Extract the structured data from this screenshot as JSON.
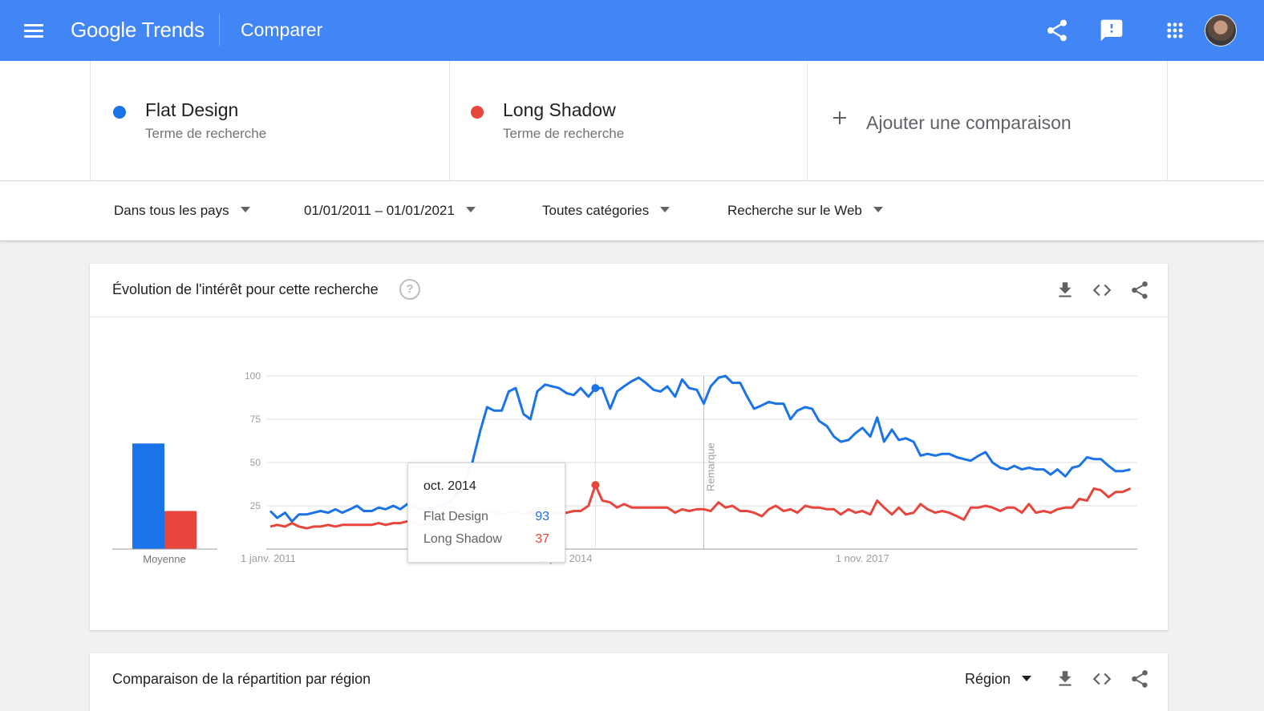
{
  "app": {
    "logo_text": "Google Trends",
    "page_title": "Comparer"
  },
  "terms": [
    {
      "name": "Flat Design",
      "type": "Terme de recherche",
      "color": "#1a73e8"
    },
    {
      "name": "Long Shadow",
      "type": "Terme de recherche",
      "color": "#e8453c"
    }
  ],
  "add_comparison": "Ajouter une comparaison",
  "filters": {
    "location": "Dans tous les pays",
    "date_range": "01/01/2011 – 01/01/2021",
    "category": "Toutes catégories",
    "search_type": "Recherche sur le Web"
  },
  "interest_card": {
    "title": "Évolution de l'intérêt pour cette recherche",
    "help_symbol": "?"
  },
  "region_card": {
    "title": "Comparaison de la répartition par région",
    "dropdown": "Région"
  },
  "tooltip": {
    "date": "oct. 2014",
    "rows": [
      {
        "label": "Flat Design",
        "value": "93",
        "color": "#1a73e8"
      },
      {
        "label": "Long Shadow",
        "value": "37",
        "color": "#e8453c"
      }
    ]
  },
  "chart_data": {
    "type": "line",
    "y_ticks": [
      "100",
      "75",
      "50",
      "25"
    ],
    "ylim": [
      0,
      100
    ],
    "x_ticks": [
      "1 janv. 2011",
      "1 juin 2014",
      "1 nov. 2017"
    ],
    "note_label": "Remarque",
    "average_label": "Moyenne",
    "averages": [
      {
        "name": "Flat Design",
        "value": 61,
        "color": "#1a73e8"
      },
      {
        "name": "Long Shadow",
        "value": 22,
        "color": "#e8453c"
      }
    ],
    "series": [
      {
        "name": "Flat Design",
        "color": "#1a73e8",
        "points": [
          [
            2011.0,
            22
          ],
          [
            2011.08,
            18
          ],
          [
            2011.17,
            21
          ],
          [
            2011.25,
            16
          ],
          [
            2011.33,
            20
          ],
          [
            2011.42,
            20
          ],
          [
            2011.5,
            21
          ],
          [
            2011.58,
            22
          ],
          [
            2011.67,
            21
          ],
          [
            2011.75,
            23
          ],
          [
            2011.83,
            21
          ],
          [
            2011.92,
            23
          ],
          [
            2012.0,
            25
          ],
          [
            2012.08,
            22
          ],
          [
            2012.17,
            22
          ],
          [
            2012.25,
            24
          ],
          [
            2012.33,
            23
          ],
          [
            2012.42,
            25
          ],
          [
            2012.5,
            23
          ],
          [
            2012.58,
            26
          ],
          [
            2012.67,
            24
          ],
          [
            2012.75,
            23
          ],
          [
            2012.83,
            22
          ],
          [
            2012.92,
            25
          ],
          [
            2013.0,
            26
          ],
          [
            2013.08,
            28
          ],
          [
            2013.17,
            33
          ],
          [
            2013.25,
            40
          ],
          [
            2013.33,
            50
          ],
          [
            2013.42,
            68
          ],
          [
            2013.5,
            82
          ],
          [
            2013.58,
            80
          ],
          [
            2013.67,
            80
          ],
          [
            2013.75,
            91
          ],
          [
            2013.83,
            93
          ],
          [
            2013.92,
            78
          ],
          [
            2014.0,
            75
          ],
          [
            2014.08,
            91
          ],
          [
            2014.17,
            95
          ],
          [
            2014.25,
            94
          ],
          [
            2014.33,
            93
          ],
          [
            2014.42,
            90
          ],
          [
            2014.5,
            89
          ],
          [
            2014.58,
            93
          ],
          [
            2014.67,
            88
          ],
          [
            2014.75,
            93
          ],
          [
            2014.83,
            93
          ],
          [
            2014.92,
            81
          ],
          [
            2015.0,
            91
          ],
          [
            2015.08,
            94
          ],
          [
            2015.17,
            97
          ],
          [
            2015.25,
            99
          ],
          [
            2015.33,
            96
          ],
          [
            2015.42,
            92
          ],
          [
            2015.5,
            91
          ],
          [
            2015.58,
            94
          ],
          [
            2015.67,
            88
          ],
          [
            2015.75,
            98
          ],
          [
            2015.83,
            93
          ],
          [
            2015.92,
            92
          ],
          [
            2016.0,
            84
          ],
          [
            2016.08,
            94
          ],
          [
            2016.17,
            99
          ],
          [
            2016.25,
            100
          ],
          [
            2016.33,
            96
          ],
          [
            2016.42,
            96
          ],
          [
            2016.5,
            88
          ],
          [
            2016.58,
            81
          ],
          [
            2016.67,
            83
          ],
          [
            2016.75,
            85
          ],
          [
            2016.83,
            84
          ],
          [
            2016.92,
            84
          ],
          [
            2017.0,
            75
          ],
          [
            2017.08,
            80
          ],
          [
            2017.17,
            82
          ],
          [
            2017.25,
            81
          ],
          [
            2017.33,
            74
          ],
          [
            2017.42,
            71
          ],
          [
            2017.5,
            65
          ],
          [
            2017.58,
            62
          ],
          [
            2017.67,
            63
          ],
          [
            2017.75,
            67
          ],
          [
            2017.83,
            70
          ],
          [
            2017.92,
            65
          ],
          [
            2018.0,
            76
          ],
          [
            2018.08,
            62
          ],
          [
            2018.17,
            69
          ],
          [
            2018.25,
            63
          ],
          [
            2018.33,
            64
          ],
          [
            2018.42,
            62
          ],
          [
            2018.5,
            54
          ],
          [
            2018.58,
            55
          ],
          [
            2018.67,
            54
          ],
          [
            2018.75,
            55
          ],
          [
            2018.83,
            55
          ],
          [
            2018.92,
            53
          ],
          [
            2019.0,
            52
          ],
          [
            2019.08,
            51
          ],
          [
            2019.17,
            54
          ],
          [
            2019.25,
            56
          ],
          [
            2019.33,
            50
          ],
          [
            2019.42,
            47
          ],
          [
            2019.5,
            46
          ],
          [
            2019.58,
            48
          ],
          [
            2019.67,
            46
          ],
          [
            2019.75,
            47
          ],
          [
            2019.83,
            46
          ],
          [
            2019.92,
            46
          ],
          [
            2020.0,
            43
          ],
          [
            2020.08,
            46
          ],
          [
            2020.17,
            42
          ],
          [
            2020.25,
            47
          ],
          [
            2020.33,
            48
          ],
          [
            2020.42,
            53
          ],
          [
            2020.5,
            52
          ],
          [
            2020.58,
            52
          ],
          [
            2020.67,
            48
          ],
          [
            2020.75,
            45
          ],
          [
            2020.83,
            45
          ],
          [
            2020.92,
            46
          ]
        ]
      },
      {
        "name": "Long Shadow",
        "color": "#e8453c",
        "points": [
          [
            2011.0,
            13
          ],
          [
            2011.08,
            14
          ],
          [
            2011.17,
            13
          ],
          [
            2011.25,
            15
          ],
          [
            2011.33,
            13
          ],
          [
            2011.42,
            12
          ],
          [
            2011.5,
            13
          ],
          [
            2011.58,
            13
          ],
          [
            2011.67,
            14
          ],
          [
            2011.75,
            13
          ],
          [
            2011.83,
            14
          ],
          [
            2011.92,
            14
          ],
          [
            2012.0,
            14
          ],
          [
            2012.08,
            14
          ],
          [
            2012.17,
            14
          ],
          [
            2012.25,
            15
          ],
          [
            2012.33,
            14
          ],
          [
            2012.42,
            15
          ],
          [
            2012.5,
            15
          ],
          [
            2012.58,
            16
          ],
          [
            2012.67,
            15
          ],
          [
            2012.75,
            14
          ],
          [
            2012.83,
            15
          ],
          [
            2012.92,
            14
          ],
          [
            2013.0,
            16
          ],
          [
            2013.08,
            16
          ],
          [
            2013.17,
            17
          ],
          [
            2013.25,
            19
          ],
          [
            2013.33,
            20
          ],
          [
            2013.42,
            20
          ],
          [
            2013.5,
            21
          ],
          [
            2013.58,
            22
          ],
          [
            2013.67,
            20
          ],
          [
            2013.75,
            21
          ],
          [
            2013.83,
            22
          ],
          [
            2013.92,
            20
          ],
          [
            2014.0,
            21
          ],
          [
            2014.08,
            21
          ],
          [
            2014.17,
            21
          ],
          [
            2014.25,
            21
          ],
          [
            2014.33,
            21
          ],
          [
            2014.42,
            21
          ],
          [
            2014.5,
            22
          ],
          [
            2014.58,
            22
          ],
          [
            2014.67,
            25
          ],
          [
            2014.75,
            37
          ],
          [
            2014.83,
            28
          ],
          [
            2014.92,
            27
          ],
          [
            2015.0,
            24
          ],
          [
            2015.08,
            26
          ],
          [
            2015.17,
            24
          ],
          [
            2015.25,
            24
          ],
          [
            2015.33,
            24
          ],
          [
            2015.42,
            24
          ],
          [
            2015.5,
            24
          ],
          [
            2015.58,
            24
          ],
          [
            2015.67,
            21
          ],
          [
            2015.75,
            23
          ],
          [
            2015.83,
            22
          ],
          [
            2015.92,
            23
          ],
          [
            2016.0,
            23
          ],
          [
            2016.08,
            22
          ],
          [
            2016.17,
            27
          ],
          [
            2016.25,
            24
          ],
          [
            2016.33,
            25
          ],
          [
            2016.42,
            22
          ],
          [
            2016.5,
            22
          ],
          [
            2016.58,
            21
          ],
          [
            2016.67,
            19
          ],
          [
            2016.75,
            23
          ],
          [
            2016.83,
            25
          ],
          [
            2016.92,
            22
          ],
          [
            2017.0,
            23
          ],
          [
            2017.08,
            21
          ],
          [
            2017.17,
            25
          ],
          [
            2017.25,
            24
          ],
          [
            2017.33,
            24
          ],
          [
            2017.42,
            23
          ],
          [
            2017.5,
            23
          ],
          [
            2017.58,
            20
          ],
          [
            2017.67,
            23
          ],
          [
            2017.75,
            21
          ],
          [
            2017.83,
            22
          ],
          [
            2017.92,
            20
          ],
          [
            2018.0,
            28
          ],
          [
            2018.08,
            24
          ],
          [
            2018.17,
            20
          ],
          [
            2018.25,
            24
          ],
          [
            2018.33,
            20
          ],
          [
            2018.42,
            21
          ],
          [
            2018.5,
            26
          ],
          [
            2018.58,
            23
          ],
          [
            2018.67,
            21
          ],
          [
            2018.75,
            22
          ],
          [
            2018.83,
            21
          ],
          [
            2018.92,
            19
          ],
          [
            2019.0,
            17
          ],
          [
            2019.08,
            24
          ],
          [
            2019.17,
            24
          ],
          [
            2019.25,
            25
          ],
          [
            2019.33,
            24
          ],
          [
            2019.42,
            22
          ],
          [
            2019.5,
            24
          ],
          [
            2019.58,
            24
          ],
          [
            2019.67,
            21
          ],
          [
            2019.75,
            26
          ],
          [
            2019.83,
            21
          ],
          [
            2019.92,
            22
          ],
          [
            2020.0,
            21
          ],
          [
            2020.08,
            23
          ],
          [
            2020.17,
            24
          ],
          [
            2020.25,
            24
          ],
          [
            2020.33,
            29
          ],
          [
            2020.42,
            28
          ],
          [
            2020.5,
            35
          ],
          [
            2020.58,
            34
          ],
          [
            2020.67,
            30
          ],
          [
            2020.75,
            33
          ],
          [
            2020.83,
            33
          ],
          [
            2020.92,
            35
          ]
        ]
      }
    ],
    "highlight_x": 2014.75,
    "note_x": 2016.0
  }
}
